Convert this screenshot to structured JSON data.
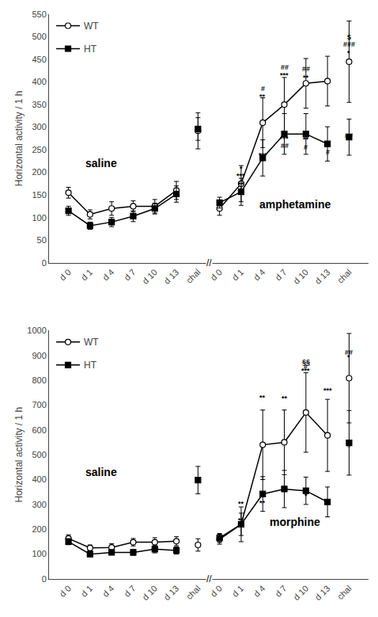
{
  "chart_data": [
    {
      "type": "line",
      "categories": [
        "d 0",
        "d 1",
        "d 4",
        "d 7",
        "d 10",
        "d 13",
        "chal",
        "d 0",
        "d 1",
        "d 4",
        "d 7",
        "d 10",
        "d 13",
        "chal"
      ],
      "ylabel": "Horizontal activity / 1 h",
      "ylim": [
        0,
        550
      ],
      "yticks": [
        0,
        50,
        100,
        150,
        200,
        250,
        300,
        350,
        400,
        450,
        500,
        550
      ],
      "grid": false,
      "legend": "upper left",
      "series": [
        {
          "name": "WT",
          "color": "black",
          "marker": "open-circle",
          "line_style": "solid",
          "values": [
            155,
            107,
            120,
            125,
            125,
            160,
            null,
            null,
            null,
            null,
            null,
            null,
            null,
            null
          ],
          "errors": [
            12,
            10,
            15,
            12,
            15,
            20,
            null,
            null,
            null,
            null,
            null,
            null,
            null,
            null
          ]
        },
        {
          "name": "WT",
          "color": "black",
          "marker": "open-circle",
          "line_style": "none",
          "values": [
            null,
            null,
            null,
            null,
            null,
            null,
            292,
            null,
            null,
            null,
            null,
            null,
            null,
            null
          ],
          "errors": [
            null,
            null,
            null,
            null,
            null,
            null,
            40,
            null,
            null,
            null,
            null,
            null,
            null,
            null
          ]
        },
        {
          "name": "HT",
          "color": "black",
          "marker": "square",
          "line_style": "solid",
          "values": [
            115,
            82,
            90,
            103,
            120,
            152,
            null,
            null,
            null,
            null,
            null,
            null,
            null,
            null
          ],
          "errors": [
            10,
            8,
            10,
            12,
            12,
            18,
            null,
            null,
            null,
            null,
            null,
            null,
            null,
            null
          ]
        },
        {
          "name": "HT",
          "color": "black",
          "marker": "square",
          "line_style": "none",
          "values": [
            null,
            null,
            null,
            null,
            null,
            null,
            296,
            null,
            null,
            null,
            null,
            null,
            null,
            null
          ],
          "errors": [
            null,
            null,
            null,
            null,
            null,
            null,
            25,
            null,
            null,
            null,
            null,
            null,
            null,
            null
          ]
        },
        {
          "name": "WT",
          "color": "black",
          "marker": "open-circle",
          "line_style": "solid",
          "values": [
            null,
            null,
            null,
            null,
            null,
            null,
            null,
            120,
            175,
            310,
            350,
            397,
            402,
            null
          ],
          "errors": [
            null,
            null,
            null,
            null,
            null,
            null,
            null,
            15,
            40,
            55,
            60,
            55,
            55,
            null
          ]
        },
        {
          "name": "WT",
          "color": "black",
          "marker": "open-circle",
          "line_style": "none",
          "values": [
            null,
            null,
            null,
            null,
            null,
            null,
            null,
            null,
            null,
            null,
            null,
            null,
            null,
            445
          ],
          "errors": [
            null,
            null,
            null,
            null,
            null,
            null,
            null,
            null,
            null,
            null,
            null,
            null,
            null,
            90
          ]
        },
        {
          "name": "HT",
          "color": "black",
          "marker": "square",
          "line_style": "solid",
          "values": [
            null,
            null,
            null,
            null,
            null,
            null,
            null,
            133,
            157,
            232,
            285,
            285,
            263,
            null
          ],
          "errors": [
            null,
            null,
            null,
            null,
            null,
            null,
            null,
            12,
            30,
            40,
            45,
            45,
            38,
            null
          ]
        },
        {
          "name": "HT",
          "color": "black",
          "marker": "square",
          "line_style": "none",
          "values": [
            null,
            null,
            null,
            null,
            null,
            null,
            null,
            null,
            null,
            null,
            null,
            null,
            null,
            278
          ],
          "errors": [
            null,
            null,
            null,
            null,
            null,
            null,
            null,
            null,
            null,
            null,
            null,
            null,
            null,
            40
          ]
        }
      ],
      "labels": [
        {
          "x": 1.5,
          "y": 220,
          "text": "saline"
        },
        {
          "x": 10.5,
          "y": 130,
          "text": "amphetamine"
        }
      ],
      "break_mark": {
        "x": 6.5,
        "text": "//"
      },
      "annotations": [
        {
          "x": 8,
          "y": 198,
          "text": "*"
        },
        {
          "x": 8,
          "y": 182,
          "text": "***"
        },
        {
          "x": 8,
          "y": 163,
          "text": "**"
        },
        {
          "x": 9,
          "y": 375,
          "text": "#"
        },
        {
          "x": 9,
          "y": 357,
          "text": "**"
        },
        {
          "x": 9,
          "y": 228,
          "text": "***"
        },
        {
          "x": 10,
          "y": 422,
          "text": "##"
        },
        {
          "x": 10,
          "y": 405,
          "text": "***"
        },
        {
          "x": 10,
          "y": 265,
          "text": "***"
        },
        {
          "x": 10,
          "y": 248,
          "text": "##"
        },
        {
          "x": 11,
          "y": 418,
          "text": "##"
        },
        {
          "x": 11,
          "y": 400,
          "text": "**"
        },
        {
          "x": 11,
          "y": 262,
          "text": "**"
        },
        {
          "x": 11,
          "y": 245,
          "text": "#"
        },
        {
          "x": 12,
          "y": 252,
          "text": "*"
        },
        {
          "x": 12,
          "y": 235,
          "text": "#"
        },
        {
          "x": 13,
          "y": 488,
          "text": "$"
        },
        {
          "x": 13,
          "y": 472,
          "text": "###"
        },
        {
          "x": 13,
          "y": 453,
          "text": "*"
        },
        {
          "x": 13,
          "y": 272,
          "text": "##"
        }
      ]
    },
    {
      "type": "line",
      "categories": [
        "d 0",
        "d 1",
        "d 4",
        "d 7",
        "d 10",
        "d 13",
        "chal",
        "d 0",
        "d 1",
        "d 4",
        "d 7",
        "d 10",
        "d 13",
        "chal"
      ],
      "ylabel": "Horizontal activity / 1 h",
      "ylim": [
        0,
        1000
      ],
      "yticks": [
        0,
        100,
        200,
        300,
        400,
        500,
        600,
        700,
        800,
        900,
        1000
      ],
      "grid": false,
      "legend": "upper left",
      "series": [
        {
          "name": "WT",
          "color": "black",
          "marker": "open-circle",
          "line_style": "solid",
          "values": [
            163,
            125,
            127,
            148,
            148,
            152,
            null,
            null,
            null,
            null,
            null,
            null,
            null,
            null
          ],
          "errors": [
            15,
            12,
            15,
            15,
            18,
            18,
            null,
            null,
            null,
            null,
            null,
            null,
            null,
            null
          ]
        },
        {
          "name": "WT",
          "color": "black",
          "marker": "open-circle",
          "line_style": "none",
          "values": [
            null,
            null,
            null,
            null,
            null,
            null,
            137,
            null,
            null,
            null,
            null,
            null,
            null,
            null
          ],
          "errors": [
            null,
            null,
            null,
            null,
            null,
            null,
            25,
            null,
            null,
            null,
            null,
            null,
            null,
            null
          ]
        },
        {
          "name": "HT",
          "color": "black",
          "marker": "square",
          "line_style": "solid",
          "values": [
            150,
            100,
            107,
            107,
            120,
            115,
            null,
            null,
            null,
            null,
            null,
            null,
            null,
            null
          ],
          "errors": [
            12,
            10,
            10,
            12,
            15,
            15,
            null,
            null,
            null,
            null,
            null,
            null,
            null,
            null
          ]
        },
        {
          "name": "HT",
          "color": "black",
          "marker": "square",
          "line_style": "none",
          "values": [
            null,
            null,
            null,
            null,
            null,
            null,
            398,
            null,
            null,
            null,
            null,
            null,
            null,
            null
          ],
          "errors": [
            null,
            null,
            null,
            null,
            null,
            null,
            55,
            null,
            null,
            null,
            null,
            null,
            null,
            null
          ]
        },
        {
          "name": "WT",
          "color": "black",
          "marker": "open-circle",
          "line_style": "solid",
          "values": [
            null,
            null,
            null,
            null,
            null,
            null,
            null,
            160,
            220,
            540,
            550,
            670,
            578,
            null
          ],
          "errors": [
            null,
            null,
            null,
            null,
            null,
            null,
            null,
            20,
            70,
            140,
            130,
            160,
            145,
            null
          ]
        },
        {
          "name": "WT",
          "color": "black",
          "marker": "open-circle",
          "line_style": "none",
          "values": [
            null,
            null,
            null,
            null,
            null,
            null,
            null,
            null,
            null,
            null,
            null,
            null,
            null,
            808
          ],
          "errors": [
            null,
            null,
            null,
            null,
            null,
            null,
            null,
            null,
            null,
            null,
            null,
            null,
            null,
            180
          ]
        },
        {
          "name": "HT",
          "color": "black",
          "marker": "square",
          "line_style": "solid",
          "values": [
            null,
            null,
            null,
            null,
            null,
            null,
            null,
            165,
            220,
            342,
            362,
            355,
            310,
            null
          ],
          "errors": [
            null,
            null,
            null,
            null,
            null,
            null,
            null,
            18,
            45,
            70,
            75,
            55,
            60,
            null
          ]
        },
        {
          "name": "HT",
          "color": "black",
          "marker": "square",
          "line_style": "none",
          "values": [
            null,
            null,
            null,
            null,
            null,
            null,
            null,
            null,
            null,
            null,
            null,
            null,
            null,
            548
          ],
          "errors": [
            null,
            null,
            null,
            null,
            null,
            null,
            null,
            null,
            null,
            null,
            null,
            null,
            null,
            130
          ]
        }
      ],
      "labels": [
        {
          "x": 1.5,
          "y": 430,
          "text": "saline"
        },
        {
          "x": 10.5,
          "y": 230,
          "text": "morphine"
        }
      ],
      "break_mark": {
        "x": 6.5,
        "text": "//"
      },
      "annotations": [
        {
          "x": 8,
          "y": 283,
          "text": "**"
        },
        {
          "x": 8,
          "y": 218,
          "text": "**"
        },
        {
          "x": 8,
          "y": 197,
          "text": "**"
        },
        {
          "x": 9,
          "y": 710,
          "text": "**"
        },
        {
          "x": 9,
          "y": 288,
          "text": "**"
        },
        {
          "x": 10,
          "y": 708,
          "text": "**"
        },
        {
          "x": 10,
          "y": 348,
          "text": "**"
        },
        {
          "x": 11,
          "y": 855,
          "text": "§§"
        },
        {
          "x": 11,
          "y": 836,
          "text": "#"
        },
        {
          "x": 11,
          "y": 818,
          "text": "***"
        },
        {
          "x": 11,
          "y": 315,
          "text": "*"
        },
        {
          "x": 12,
          "y": 738,
          "text": "***"
        },
        {
          "x": 12,
          "y": 292,
          "text": "**"
        },
        {
          "x": 13,
          "y": 892,
          "text": "##"
        },
        {
          "x": 13,
          "y": 873,
          "text": "*"
        },
        {
          "x": 13,
          "y": 518,
          "text": "#"
        }
      ]
    }
  ]
}
